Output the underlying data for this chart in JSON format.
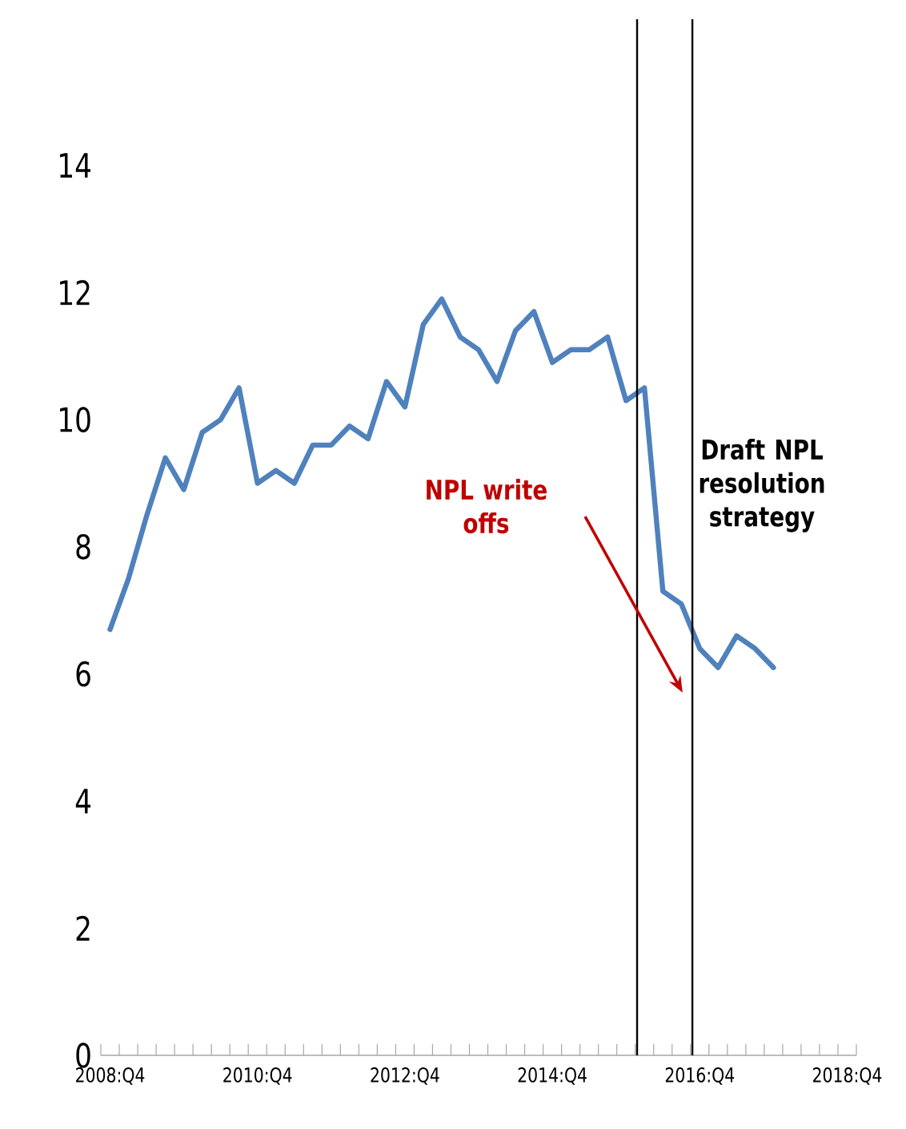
{
  "chart_data": {
    "type": "line",
    "categories": [
      "2008:Q4",
      null,
      null,
      null,
      null,
      null,
      null,
      null,
      "2010:Q4",
      null,
      null,
      null,
      null,
      null,
      null,
      null,
      "2012:Q4",
      null,
      null,
      null,
      null,
      null,
      null,
      null,
      "2014:Q4",
      null,
      null,
      null,
      null,
      null,
      null,
      null,
      "2016:Q4",
      null,
      null,
      null,
      null,
      null,
      null,
      null,
      "2018:Q4"
    ],
    "series": [
      {
        "color": "#4f81bd",
        "values": [
          6.7,
          7.5,
          8.5,
          9.4,
          8.9,
          9.8,
          10.0,
          10.5,
          9.0,
          9.2,
          9.0,
          9.6,
          9.6,
          9.9,
          9.7,
          10.6,
          10.2,
          11.5,
          11.9,
          11.3,
          11.1,
          10.6,
          11.4,
          11.7,
          10.9,
          11.1,
          11.1,
          11.3,
          10.3,
          10.5,
          7.3,
          7.1,
          6.4,
          6.1,
          6.6,
          6.4,
          6.1,
          null,
          null,
          null,
          null
        ]
      }
    ],
    "ylim": [
      0,
      16.3
    ],
    "yticks": [
      0,
      2,
      4,
      6,
      8,
      10,
      12,
      14
    ],
    "annotations": [
      "NPL write offs",
      "Draft NPL resolution strategy"
    ],
    "marker": "none",
    "line_style": "solid"
  }
}
